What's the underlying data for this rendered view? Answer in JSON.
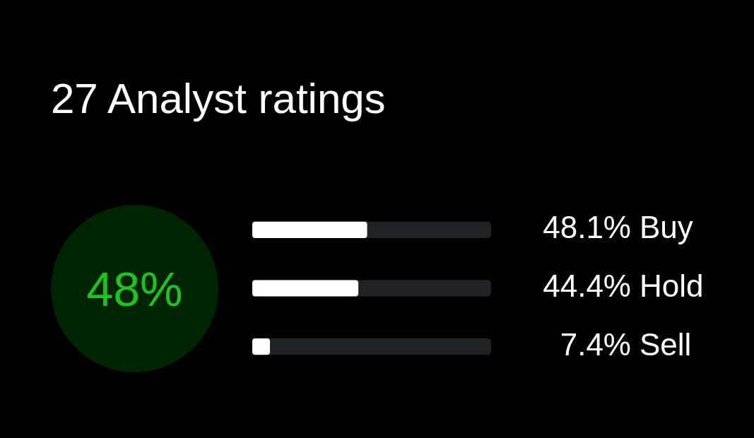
{
  "chart_data": {
    "type": "bar",
    "title": "27 Analyst ratings",
    "orientation": "horizontal",
    "categories": [
      "Buy",
      "Hold",
      "Sell"
    ],
    "values": [
      48.1,
      44.4,
      7.4
    ],
    "value_labels": [
      "48.1%",
      "44.4%",
      "7.4%"
    ],
    "color": "#ffffff",
    "xlim": [
      0,
      100
    ],
    "tick_labels": "y",
    "annotations": [
      "48%"
    ]
  }
}
